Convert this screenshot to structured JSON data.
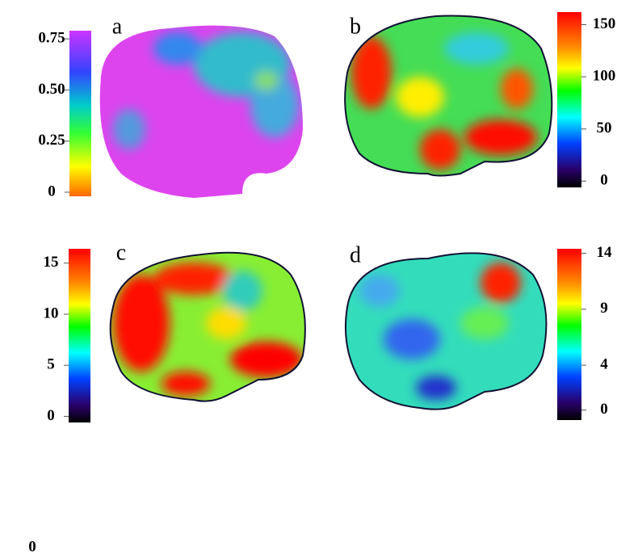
{
  "panels": [
    {
      "label": "a",
      "colorbar": {
        "lim": [
          -0.02,
          0.79
        ],
        "ticks": [
          0.75,
          {
            "value": 0.5,
            "label": "0.50"
          },
          0.25,
          0
        ]
      }
    },
    {
      "label": "b",
      "colorbar": {
        "lim": [
          -6,
          162
        ],
        "ticks": [
          150,
          100,
          50,
          0
        ]
      }
    },
    {
      "label": "c",
      "colorbar": {
        "lim": [
          -0.6,
          16.4
        ],
        "ticks": [
          15,
          10,
          5,
          0
        ]
      }
    },
    {
      "label": "d",
      "colorbar": {
        "lim": [
          -0.9,
          14.4
        ],
        "ticks": [
          14,
          9,
          4,
          0
        ]
      }
    }
  ],
  "footer_text": "0"
}
